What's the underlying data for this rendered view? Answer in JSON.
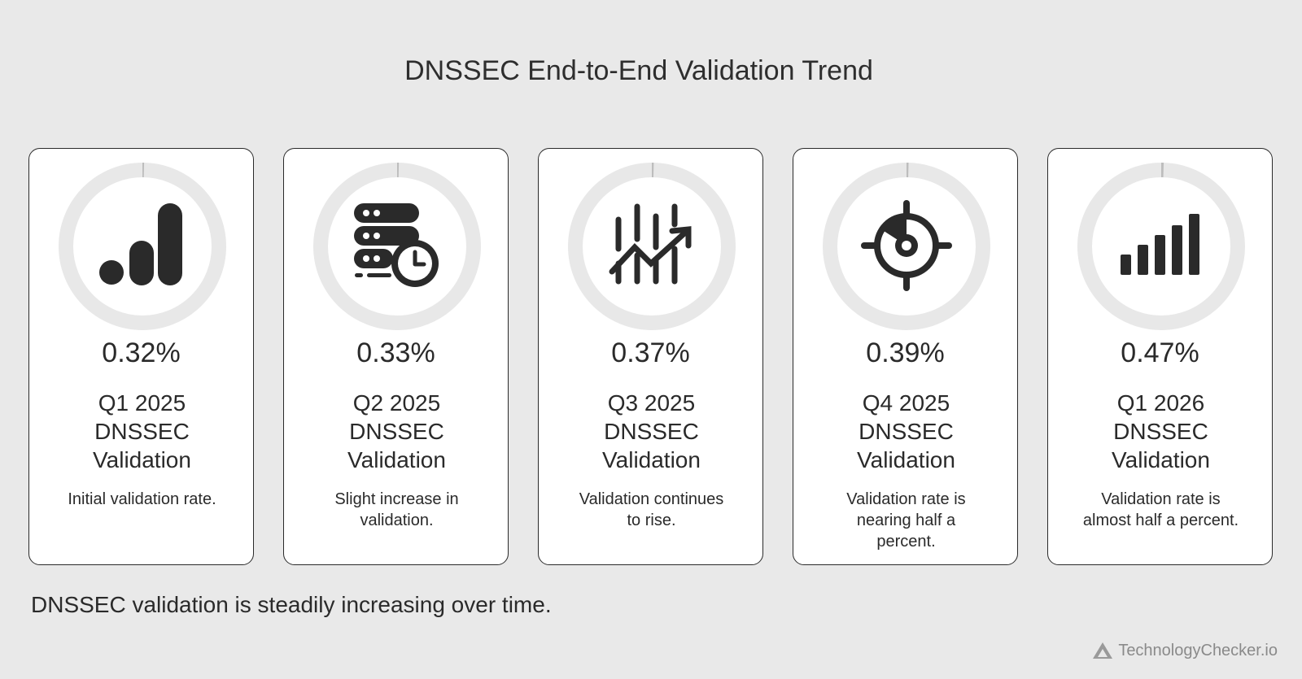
{
  "chart_data": {
    "type": "bar",
    "title": "DNSSEC End-to-End Validation Trend",
    "categories": [
      "Q1 2025 DNSSEC Validation",
      "Q2 2025 DNSSEC Validation",
      "Q3 2025 DNSSEC Validation",
      "Q4 2025 DNSSEC Validation",
      "Q1 2026 DNSSEC Validation"
    ],
    "values": [
      0.32,
      0.33,
      0.37,
      0.39,
      0.47
    ],
    "value_labels": [
      "0.32%",
      "0.33%",
      "0.37%",
      "0.39%",
      "0.47%"
    ],
    "unit": "%",
    "ylim": [
      0,
      100
    ]
  },
  "title": "DNSSEC End-to-End Validation Trend",
  "cards": [
    {
      "value": "0.32%",
      "label": "Q1 2025 DNSSEC Validation",
      "description": "Initial validation rate.",
      "icon": "bar-chart-icon"
    },
    {
      "value": "0.33%",
      "label": "Q2 2025 DNSSEC Validation",
      "description": "Slight increase in validation.",
      "icon": "server-clock-icon"
    },
    {
      "value": "0.37%",
      "label": "Q3 2025 DNSSEC Validation",
      "description": "Validation continues to rise.",
      "icon": "trend-up-icon"
    },
    {
      "value": "0.39%",
      "label": "Q4 2025 DNSSEC Validation",
      "description": "Validation rate is nearing half a percent.",
      "icon": "target-icon"
    },
    {
      "value": "0.47%",
      "label": "Q1 2026 DNSSEC Validation",
      "description": "Validation rate is almost half a percent.",
      "icon": "signal-bars-icon"
    }
  ],
  "footer": "DNSSEC validation is steadily increasing over time.",
  "brand": "TechnologyChecker.io",
  "colors": {
    "background": "#e9e9e9",
    "card": "#ffffff",
    "ring_track": "#e8e8e8",
    "ring_fill": "#bdbdbd",
    "icon": "#2a2a2a",
    "text": "#2a2a2a",
    "brand": "#8a8a8a"
  }
}
